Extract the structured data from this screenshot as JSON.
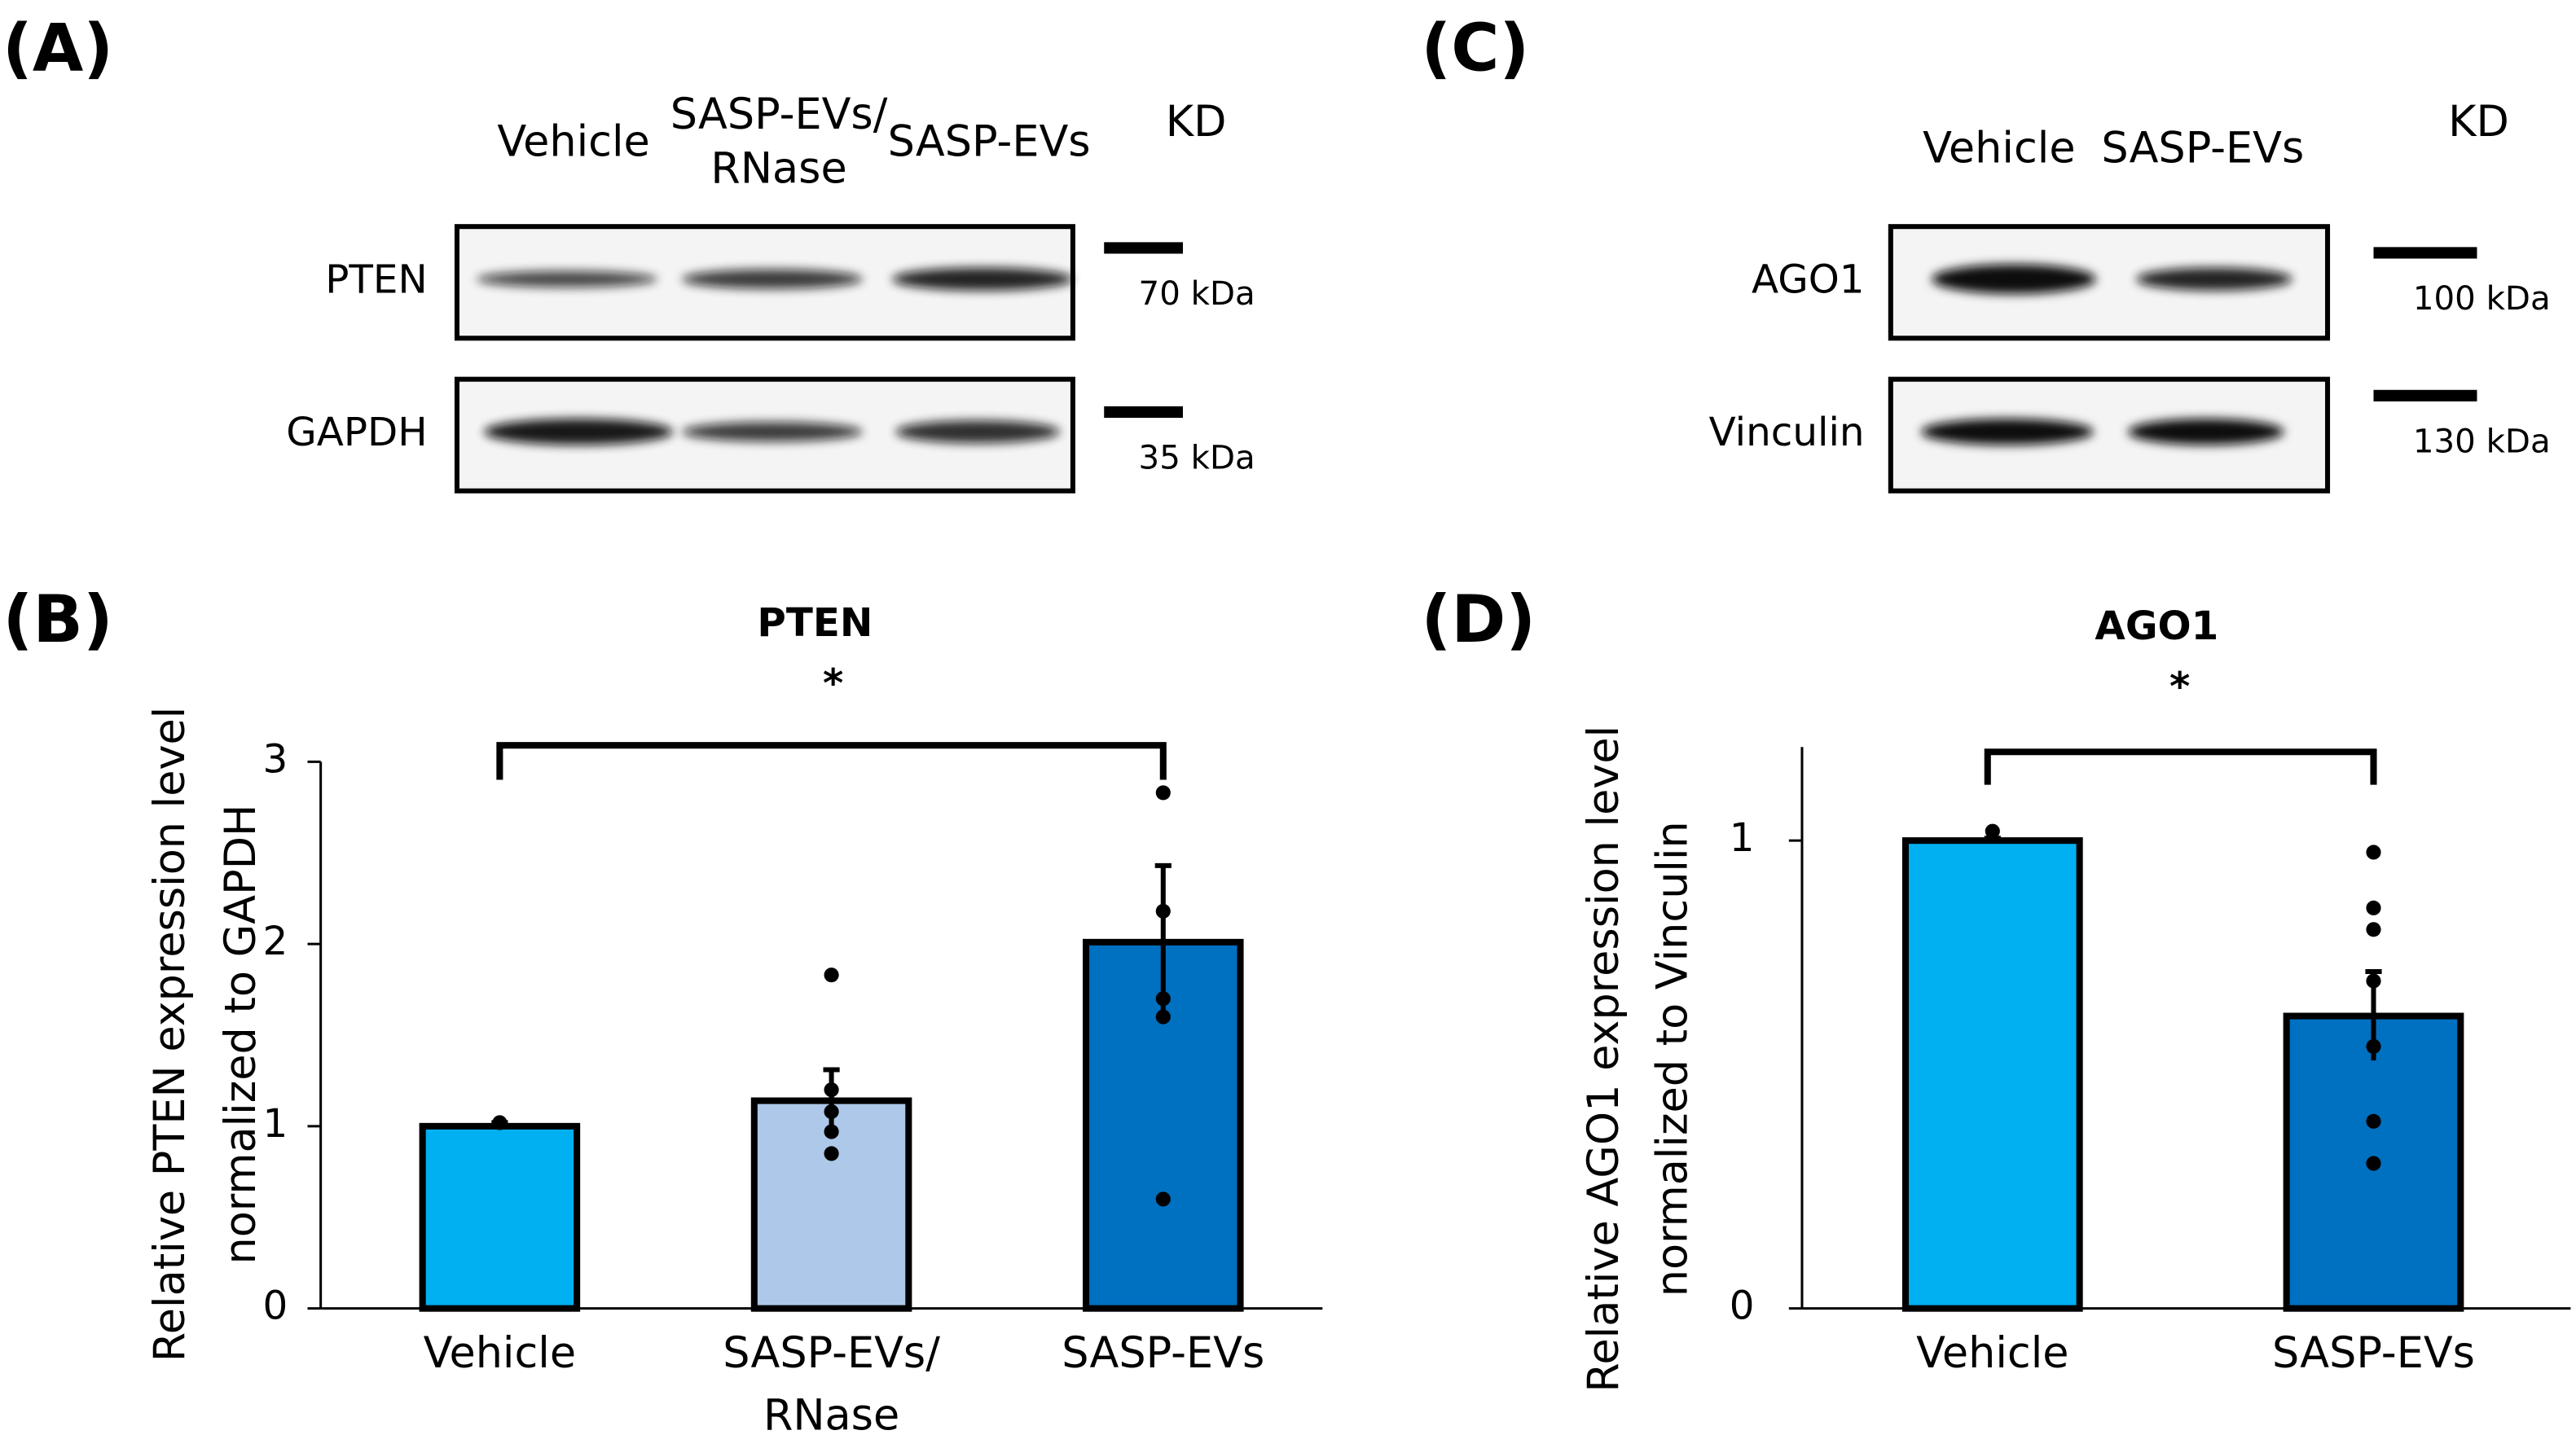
{
  "blot_a": {
    "label": "(A)",
    "header": "KD",
    "lanes": [
      [
        "Vehicle"
      ],
      [
        "SASP-EVs/",
        "RNase"
      ],
      [
        "SASP-EVs"
      ]
    ],
    "rows": [
      {
        "name": "PTEN",
        "marker": "70 kDa"
      },
      {
        "name": "GAPDH",
        "marker": "35 kDa"
      }
    ]
  },
  "blot_c": {
    "label": "(C)",
    "header": "KD",
    "lanes": [
      [
        "Vehicle"
      ],
      [
        "SASP-EVs"
      ]
    ],
    "rows": [
      {
        "name": "AGO1",
        "marker": "100 kDa"
      },
      {
        "name": "Vinculin",
        "marker": "130 kDa"
      }
    ]
  },
  "chart_data": [
    {
      "type": "bar",
      "label": "(B)",
      "title": "PTEN",
      "annotation": "*",
      "ylabel": [
        "Relative PTEN expression level",
        "normalized to GAPDH"
      ],
      "categories": [
        [
          "Vehicle"
        ],
        [
          "SASP-EVs/",
          "RNase"
        ],
        [
          "SASP-EVs"
        ]
      ],
      "values": [
        1.0,
        1.14,
        2.01
      ],
      "errors": [
        0.02,
        0.17,
        0.42
      ],
      "points": [
        [
          1.02
        ],
        [
          1.83,
          1.2,
          1.08,
          0.97,
          0.85
        ],
        [
          2.83,
          2.18,
          1.7,
          1.6,
          0.6
        ]
      ],
      "colors": [
        "#00b0f0",
        "#adc8e8",
        "#0070c0"
      ],
      "ylim": [
        0,
        3
      ],
      "yticks": [
        0,
        1,
        2,
        3
      ]
    },
    {
      "type": "bar",
      "label": "(D)",
      "title": "AGO1",
      "annotation": "*",
      "ylabel": [
        "Relative AGO1 expression level",
        "normalized to Vinculin"
      ],
      "categories": [
        [
          "Vehicle"
        ],
        [
          "SASP-EVs"
        ]
      ],
      "values": [
        1.0,
        0.625
      ],
      "errors": [
        0.005,
        0.095
      ],
      "points": [
        [
          1.02
        ],
        [
          0.975,
          0.856,
          0.81,
          0.7,
          0.56,
          0.4,
          0.31
        ]
      ],
      "colors": [
        "#00b0f0",
        "#0070c0"
      ],
      "ylim": [
        0,
        1.2
      ],
      "yticks": [
        0,
        1
      ]
    }
  ]
}
